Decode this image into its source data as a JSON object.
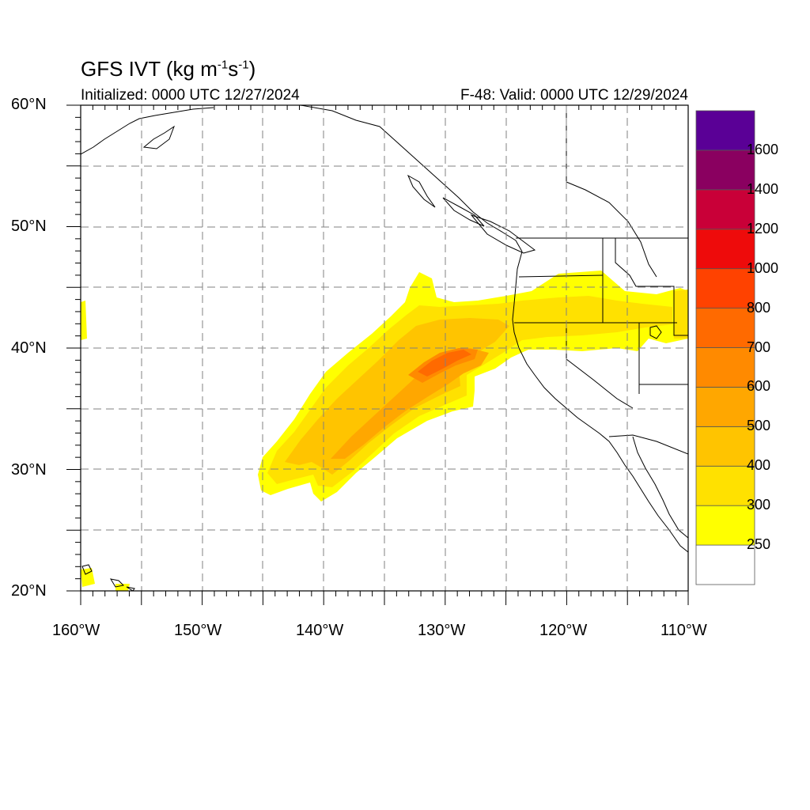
{
  "title": {
    "prefix": "GFS IVT (kg m",
    "exp1": "-1",
    "mid": "s",
    "exp2": "-1",
    "suffix": ")"
  },
  "subtitle_left": "Initialized: 0000 UTC 12/27/2024",
  "subtitle_right": "F-48: Valid: 0000 UTC 12/29/2024",
  "lat_labels": [
    "60°N",
    "50°N",
    "40°N",
    "30°N",
    "20°N"
  ],
  "lon_labels": [
    "160°W",
    "150°W",
    "140°W",
    "130°W",
    "120°W",
    "110°W"
  ],
  "colorbar": {
    "levels": [
      "250",
      "300",
      "400",
      "500",
      "600",
      "700",
      "800",
      "1000",
      "1200",
      "1400",
      "1600"
    ],
    "colors": [
      "#ffffff",
      "#ffff00",
      "#ffe100",
      "#ffc400",
      "#ffa700",
      "#ff8a00",
      "#ff6a00",
      "#ff4200",
      "#ee0b0b",
      "#c90038",
      "#8a0060",
      "#5a0096"
    ]
  },
  "map": {
    "lon_range": [
      -160,
      -110
    ],
    "lat_range": [
      20,
      60
    ],
    "grid_step_deg": 5
  },
  "ivt_layers": [
    {
      "level": "250",
      "color": "#ffff00",
      "shape": "outer plume"
    },
    {
      "level": "300",
      "color": "#ffe100",
      "shape": "plume body"
    },
    {
      "level": "400",
      "color": "#ffc400",
      "shape": "plume core"
    },
    {
      "level": "500",
      "color": "#ffa700",
      "shape": "inner core"
    },
    {
      "level": "700",
      "color": "#ff6a00",
      "shape": "maximum"
    }
  ]
}
